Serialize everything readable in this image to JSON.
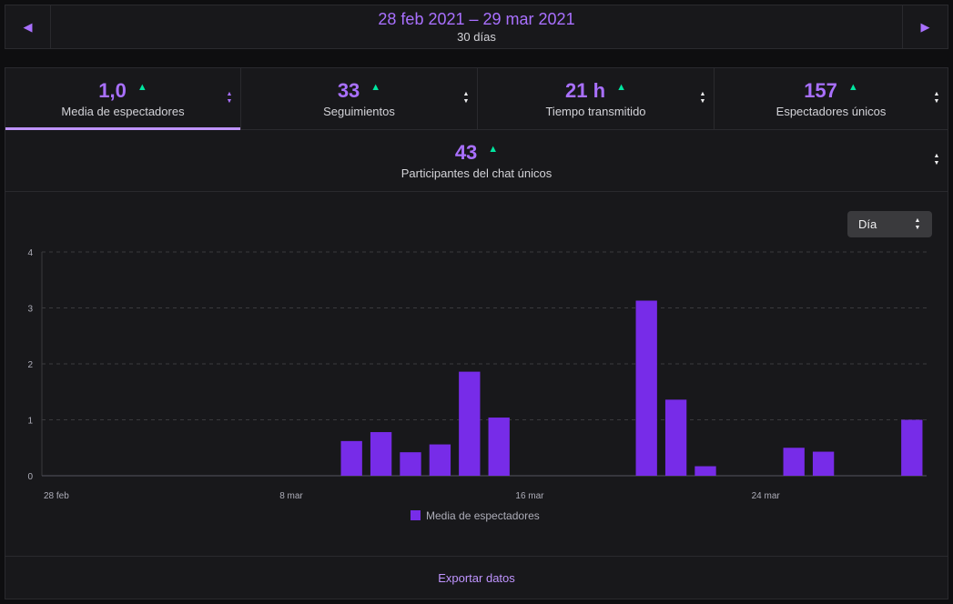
{
  "header": {
    "date_range": "28 feb 2021 – 29 mar 2021",
    "days": "30 días",
    "prev_icon": "chevron-left-icon",
    "next_icon": "chevron-right-icon"
  },
  "metrics": [
    {
      "value": "1,0",
      "label": "Media de espectadores",
      "active": true
    },
    {
      "value": "33",
      "label": "Seguimientos"
    },
    {
      "value": "21 h",
      "label": "Tiempo transmitido"
    },
    {
      "value": "157",
      "label": "Espectadores únicos"
    },
    {
      "value": "43",
      "label": "Participantes del chat únicos"
    }
  ],
  "granularity_select": {
    "value": "Día"
  },
  "export_label": "Exportar datos",
  "colors": {
    "accent": "#a970ff",
    "bar": "#772ce8",
    "trend_up": "#00e6a0"
  },
  "chart_data": {
    "type": "bar",
    "title": "",
    "xlabel": "",
    "ylabel": "",
    "ylim": [
      0,
      4
    ],
    "yticks": [
      "0",
      "1",
      "2",
      "3",
      "4"
    ],
    "grid": true,
    "categories": [
      "28 feb",
      "1 mar",
      "2 mar",
      "3 mar",
      "4 mar",
      "5 mar",
      "6 mar",
      "7 mar",
      "8 mar",
      "9 mar",
      "10 mar",
      "11 mar",
      "12 mar",
      "13 mar",
      "14 mar",
      "15 mar",
      "16 mar",
      "17 mar",
      "18 mar",
      "19 mar",
      "20 mar",
      "21 mar",
      "22 mar",
      "23 mar",
      "24 mar",
      "25 mar",
      "26 mar",
      "27 mar",
      "28 mar",
      "29 mar"
    ],
    "xtick_labels": [
      {
        "index": 0,
        "label": "28 feb"
      },
      {
        "index": 8,
        "label": "8 mar"
      },
      {
        "index": 16,
        "label": "16 mar"
      },
      {
        "index": 24,
        "label": "24 mar"
      }
    ],
    "series": [
      {
        "name": "Media de espectadores",
        "values": [
          0,
          0,
          0,
          0,
          0,
          0,
          0,
          0,
          0,
          0,
          0.62,
          0.78,
          0.42,
          0.56,
          1.86,
          1.04,
          0,
          0,
          0,
          0,
          3.13,
          1.36,
          0.17,
          0,
          0,
          0.5,
          0.43,
          0,
          0,
          1.0
        ]
      }
    ],
    "legend": "bottom"
  }
}
